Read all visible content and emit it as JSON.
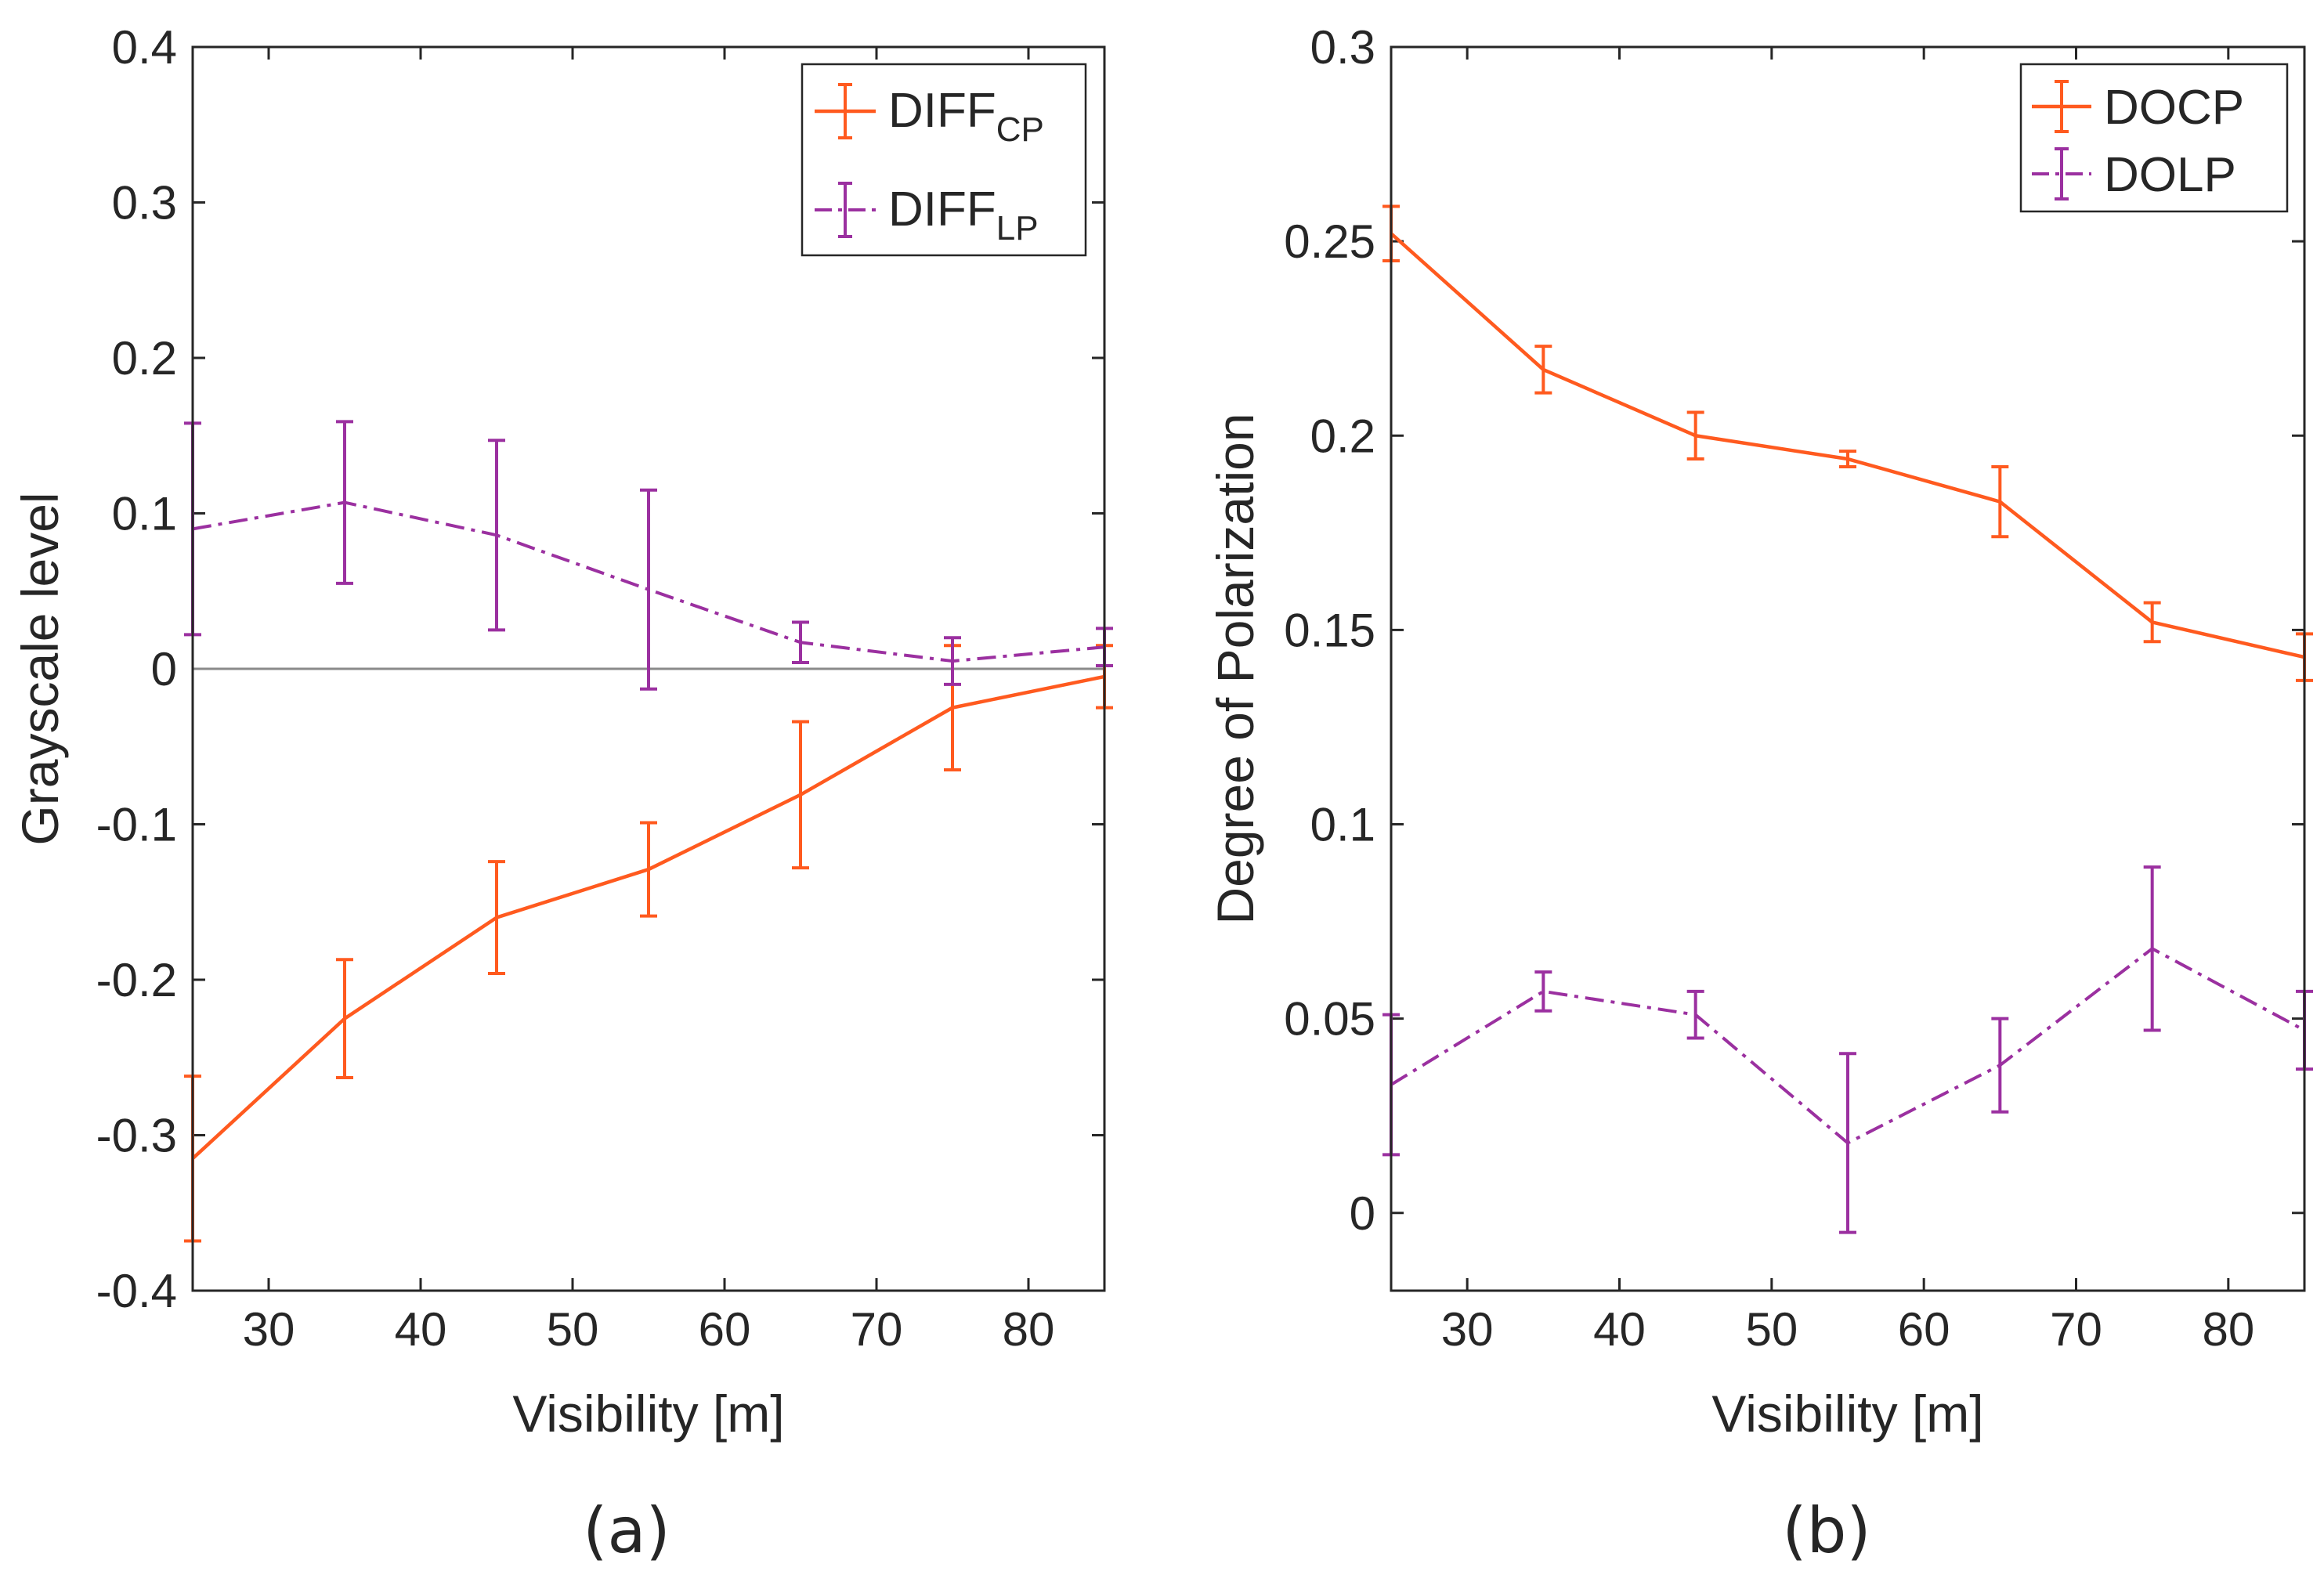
{
  "chart_data": [
    {
      "type": "line",
      "panel_label": "(a)",
      "xlabel": "Visibility [m]",
      "ylabel": "Grayscale level",
      "xlim": [
        25,
        85
      ],
      "ylim": [
        -0.4,
        0.4
      ],
      "xticks": [
        30,
        40,
        50,
        60,
        70,
        80
      ],
      "yticks": [
        -0.4,
        -0.3,
        -0.2,
        -0.1,
        0,
        0.1,
        0.2,
        0.3,
        0.4
      ],
      "xtick_labels": [
        "30",
        "40",
        "50",
        "60",
        "70",
        "80"
      ],
      "ytick_labels": [
        "-0.4",
        "-0.3",
        "-0.2",
        "-0.1",
        "0",
        "0.1",
        "0.2",
        "0.3",
        "0.4"
      ],
      "zero_line": true,
      "legend_position": "top-right",
      "x": [
        25,
        35,
        45,
        55,
        65,
        75,
        85
      ],
      "series": [
        {
          "name": "DIFF",
          "name_sub": "CP",
          "color": "#ff5a1f",
          "style": "solid",
          "values": [
            -0.315,
            -0.225,
            -0.16,
            -0.129,
            -0.081,
            -0.025,
            -0.005
          ],
          "errors": [
            0.053,
            0.038,
            0.036,
            0.03,
            0.047,
            0.04,
            0.02
          ]
        },
        {
          "name": "DIFF",
          "name_sub": "LP",
          "color": "#9b30a0",
          "style": "dashdot",
          "values": [
            0.09,
            0.107,
            0.086,
            0.051,
            0.017,
            0.005,
            0.014
          ],
          "errors": [
            0.068,
            0.052,
            0.061,
            0.064,
            0.013,
            0.015,
            0.012
          ]
        }
      ]
    },
    {
      "type": "line",
      "panel_label": "(b)",
      "xlabel": "Visibility [m]",
      "ylabel": "Degree of Polarization",
      "xlim": [
        25,
        85
      ],
      "ylim": [
        -0.02,
        0.3
      ],
      "xticks": [
        30,
        40,
        50,
        60,
        70,
        80
      ],
      "yticks": [
        0,
        0.05,
        0.1,
        0.15,
        0.2,
        0.25,
        0.3
      ],
      "xtick_labels": [
        "30",
        "40",
        "50",
        "60",
        "70",
        "80"
      ],
      "ytick_labels": [
        "0",
        "0.05",
        "0.1",
        "0.15",
        "0.2",
        "0.25",
        "0.3"
      ],
      "zero_line": false,
      "legend_position": "top-right",
      "x": [
        25,
        35,
        45,
        55,
        65,
        75,
        85
      ],
      "series": [
        {
          "name": "DOCP",
          "name_sub": "",
          "color": "#ff5a1f",
          "style": "solid",
          "values": [
            0.252,
            0.217,
            0.2,
            0.194,
            0.183,
            0.152,
            0.143
          ],
          "errors": [
            0.007,
            0.006,
            0.006,
            0.002,
            0.009,
            0.005,
            0.006
          ]
        },
        {
          "name": "DOLP",
          "name_sub": "",
          "color": "#9b30a0",
          "style": "dashdot",
          "values": [
            0.033,
            0.057,
            0.051,
            0.018,
            0.038,
            0.068,
            0.047
          ],
          "errors": [
            0.018,
            0.005,
            0.006,
            0.023,
            0.012,
            0.021,
            0.01
          ]
        }
      ]
    }
  ]
}
